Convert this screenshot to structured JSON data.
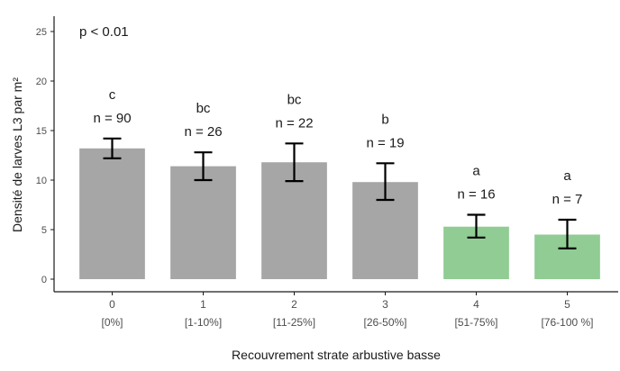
{
  "chart_data": {
    "type": "bar",
    "pvalue": "p < 0.01",
    "ylabel": "Densité de larves L3 par m²",
    "xlabel": "Recouvrement strate arbustive basse",
    "ylim": [
      0,
      26
    ],
    "yticks": [
      0,
      5,
      10,
      15,
      20,
      25
    ],
    "grid": false,
    "categories": [
      {
        "code": "0",
        "range": "[0%]"
      },
      {
        "code": "1",
        "range": "[1-10%]"
      },
      {
        "code": "2",
        "range": "[11-25%]"
      },
      {
        "code": "3",
        "range": "[26-50%]"
      },
      {
        "code": "4",
        "range": "[51-75%]"
      },
      {
        "code": "5",
        "range": "[76-100 %]"
      }
    ],
    "values": [
      13.2,
      11.4,
      11.8,
      9.8,
      5.3,
      4.5
    ],
    "error_low": [
      12.2,
      10.0,
      9.9,
      8.0,
      4.2,
      3.1
    ],
    "error_high": [
      14.2,
      12.8,
      13.7,
      11.7,
      6.5,
      6.0
    ],
    "letters": [
      "c",
      "bc",
      "bc",
      "b",
      "a",
      "a"
    ],
    "n_labels": [
      "n = 90",
      "n = 26",
      "n = 22",
      "n = 19",
      "n = 16",
      "n = 7"
    ],
    "bar_colors": [
      "#a6a6a6",
      "#a6a6a6",
      "#a6a6a6",
      "#a6a6a6",
      "#90cc94",
      "#90cc94"
    ],
    "colors": {
      "axis": "#1a1a1a",
      "errorbar": "#000000",
      "tick_text": "#4d4d4d"
    }
  }
}
